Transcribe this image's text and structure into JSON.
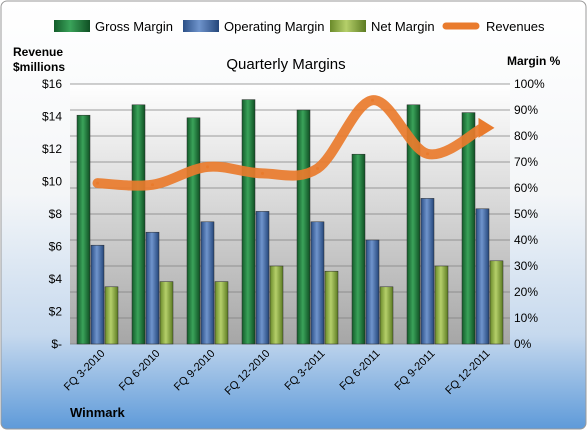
{
  "chart_data": {
    "type": "bar",
    "title": "Quarterly Margins",
    "left_axis_title": [
      "Revenue",
      "$millions"
    ],
    "right_axis_title": "Margin %",
    "company": "Winmark",
    "categories": [
      "FQ 3-2010",
      "FQ 6-2010",
      "FQ 9-2010",
      "FQ 12-2010",
      "FQ 3-2011",
      "FQ 6-2011",
      "FQ 9-2011",
      "FQ 12-2011"
    ],
    "left_ticks": [
      "$-",
      "$2",
      "$4",
      "$6",
      "$8",
      "$10",
      "$12",
      "$14",
      "$16"
    ],
    "right_ticks": [
      "0%",
      "10%",
      "20%",
      "30%",
      "40%",
      "50%",
      "60%",
      "70%",
      "80%",
      "90%",
      "100%"
    ],
    "left_axis": {
      "min": 0,
      "max": 16,
      "unit": "$ millions"
    },
    "right_axis": {
      "min": 0,
      "max": 100,
      "unit": "%"
    },
    "legend_position": "top",
    "grid": true,
    "series": [
      {
        "name": "Gross Margin",
        "type": "bar",
        "axis": "right",
        "color": "#1e7a3c",
        "values": [
          88,
          92,
          87,
          94,
          90,
          73,
          92,
          89
        ]
      },
      {
        "name": "Operating Margin",
        "type": "bar",
        "axis": "right",
        "color": "#3f67a7",
        "values": [
          38,
          43,
          47,
          51,
          47,
          40,
          56,
          52
        ]
      },
      {
        "name": "Net Margin",
        "type": "bar",
        "axis": "right",
        "color": "#8fae3e",
        "values": [
          22,
          24,
          24,
          30,
          28,
          22,
          30,
          32
        ]
      },
      {
        "name": "Revenues",
        "type": "line",
        "axis": "left",
        "color": "#e97b2d",
        "values": [
          9.9,
          9.8,
          10.9,
          10.5,
          10.8,
          15.0,
          11.7,
          13.3
        ]
      }
    ]
  }
}
